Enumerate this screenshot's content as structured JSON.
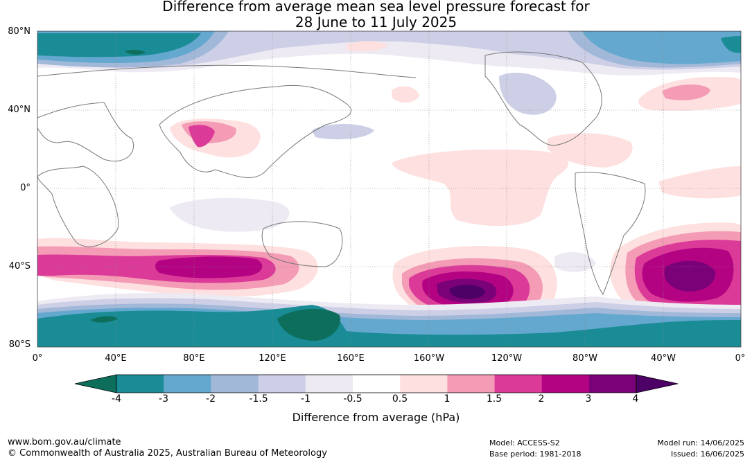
{
  "title_line1": "Difference from average mean sea level pressure forecast for",
  "title_line2": "28 June to 11 July 2025",
  "lat_labels": [
    "80°N",
    "40°N",
    "0°",
    "40°S",
    "80°S"
  ],
  "lon_labels": [
    "0°",
    "40°E",
    "80°E",
    "120°E",
    "160°E",
    "160°W",
    "120°W",
    "80°W",
    "40°W",
    "0°"
  ],
  "colorbar": {
    "ticks": [
      "-4",
      "-3",
      "-2",
      "-1.5",
      "-1",
      "-0.5",
      "0.5",
      "1",
      "1.5",
      "2",
      "3",
      "4"
    ],
    "colors": [
      "#0d6e5c",
      "#1a8c96",
      "#64a8cf",
      "#a2b8d8",
      "#cdcfe6",
      "#eeeaf3",
      "#ffffff",
      "#fde0df",
      "#f49bb5",
      "#db3a98",
      "#b30382",
      "#7a0178",
      "#4d0066"
    ],
    "title": "Difference from average (hPa)"
  },
  "footer": {
    "url": "www.bom.gov.au/climate",
    "copyright": "© Commonwealth of Australia 2025, Australian Bureau of Meteorology",
    "model": "Model: ACCESS-S2",
    "base_period": "Base period: 1981-2018",
    "model_run": "Model run: 14/06/2025",
    "issued": "Issued: 16/06/2025"
  }
}
